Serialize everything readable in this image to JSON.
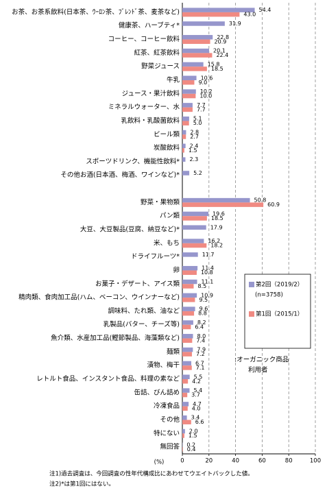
{
  "chart_data": {
    "type": "bar",
    "orientation": "horizontal",
    "categories": [
      "お茶、お茶系飲料(日本茶、ｳｰﾛﾝ茶、ﾌﾞﾚﾝﾄﾞ茶、麦茶など)",
      "健康茶、ハーブティ*",
      "コーヒー、コーヒー飲料",
      "紅茶、紅茶飲料",
      "野菜ジュース",
      "牛乳",
      "ジュース・果汁飲料",
      "ミネラルウォーター、水",
      "乳飲料・乳酸菌飲料",
      "ビール類",
      "炭酸飲料",
      "スポーツドリンク、機能性飲料*",
      "その他お酒(日本酒、梅酒、ワインなど)*",
      null,
      "野菜・果物類",
      "パン類",
      "大豆、大豆製品(豆腐、納豆など)*",
      "米、もち",
      "ドライフルーツ*",
      "卵",
      "お菓子・デザート、アイス類",
      "精肉類、食肉加工品(ハム、ベーコン、ウインナーなど)",
      "調味料、たれ類、油など",
      "乳製品(バター、チーズ等)",
      "魚介類、水産加工品(鰹節製品、海藻類など)",
      "麺類",
      "漬物、梅干",
      "レトルト食品、インスタント食品、料理の素など",
      "缶詰、びん詰め",
      "冷凍食品",
      "その他",
      "特にない",
      "無回答"
    ],
    "series": [
      {
        "name": "第2回（2019/2）",
        "color": "#9696cc",
        "values": [
          54.4,
          31.9,
          22.8,
          20.1,
          15.8,
          10.6,
          10.2,
          7.7,
          5.1,
          2.8,
          2.4,
          2.3,
          5.2,
          null,
          50.8,
          19.6,
          17.9,
          16.2,
          11.7,
          11.4,
          11.1,
          10.9,
          9.6,
          8.2,
          8.0,
          7.9,
          6.7,
          5.5,
          5.4,
          4.7,
          3.4,
          2.0,
          0.2
        ],
        "value_labels": [
          "54.4",
          "31.9",
          "22.8",
          "20.1",
          "15.8",
          "10.6",
          "10.2",
          "7.7",
          "5.1",
          "2.8",
          "2.4",
          "2.3",
          "5.2",
          null,
          "50.8",
          "19.6",
          "17.9",
          "16.2",
          "11.7",
          "11.4",
          "11.1",
          "10.9",
          "9.6",
          "8.2",
          "8.0",
          "7.9",
          "6.7",
          "5.5",
          "5.4",
          "4.7",
          "3.4",
          "2.0",
          "0.2"
        ]
      },
      {
        "name": "第1回（2015/1）",
        "color": "#f08a82",
        "values": [
          43.0,
          null,
          20.9,
          22.4,
          18.5,
          9.0,
          10.0,
          7.7,
          5.0,
          2.7,
          1.5,
          null,
          null,
          null,
          60.9,
          18.5,
          null,
          18.2,
          null,
          10.8,
          8.5,
          9.5,
          8.8,
          6.4,
          7.4,
          7.2,
          7.1,
          4.2,
          3.7,
          4.0,
          6.6,
          1.5,
          0.4
        ],
        "value_labels": [
          "43.0",
          null,
          "20.9",
          "22.4",
          "18.5",
          "9.0",
          "10.0",
          "7.7",
          "5.0",
          "2.7",
          "1.5",
          null,
          null,
          null,
          "60.9",
          "18.5",
          null,
          "18.2",
          null,
          "10.8",
          "8.5",
          "9.5",
          "8.8",
          "6.4",
          "7.4",
          "7.2",
          "7.1",
          "4.2",
          "3.7",
          "4.0",
          "6.6",
          "1.5",
          "0.4"
        ]
      }
    ],
    "legend_note": "(n=3758)",
    "annotation": [
      ":オーガニック商品",
      "利用者"
    ],
    "xlabel": "(%)",
    "xlim": [
      0,
      100
    ],
    "xticks": [
      0,
      20,
      40,
      60,
      80,
      100
    ],
    "grid": true,
    "notes": [
      "注1)過去調査は、今回調査の性年代構成比にあわせてウエイトバックした値。",
      "注2)*は第1回にはない。"
    ]
  }
}
